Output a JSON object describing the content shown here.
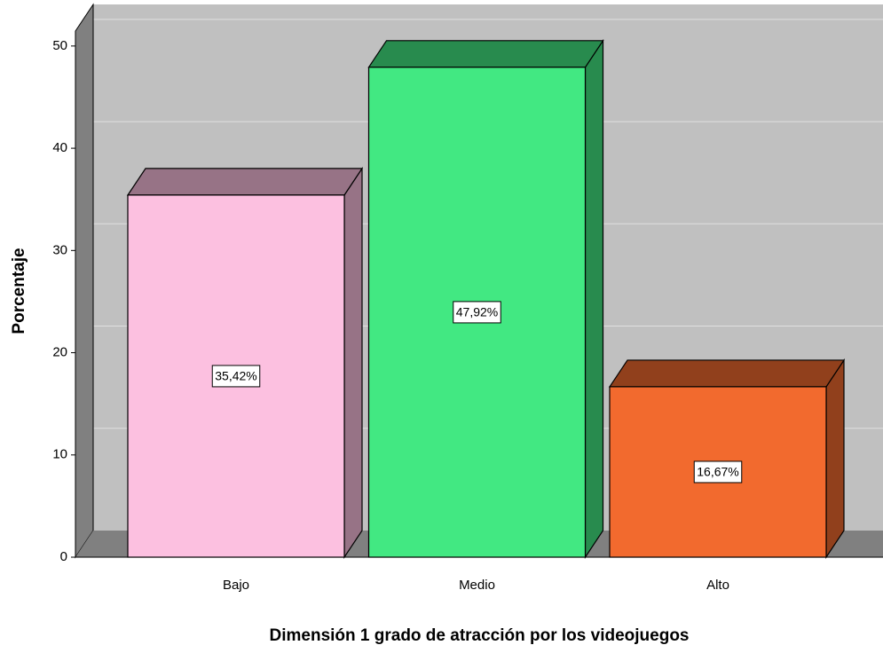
{
  "chart_data": {
    "type": "bar3d",
    "x_label": "Dimensión 1 grado de atracción por los videojuegos",
    "y_label": "Porcentaje",
    "categories": [
      "Bajo",
      "Medio",
      "Alto"
    ],
    "values": [
      35.42,
      47.92,
      16.67
    ],
    "value_labels": [
      "35,42%",
      "47,92%",
      "16,67%"
    ],
    "colors": [
      "#fcc0e0",
      "#42e882",
      "#f26a2e"
    ],
    "ylim": [
      0,
      54.5
    ],
    "yticks": [
      0,
      10,
      20,
      30,
      40,
      50
    ],
    "grid": true
  }
}
